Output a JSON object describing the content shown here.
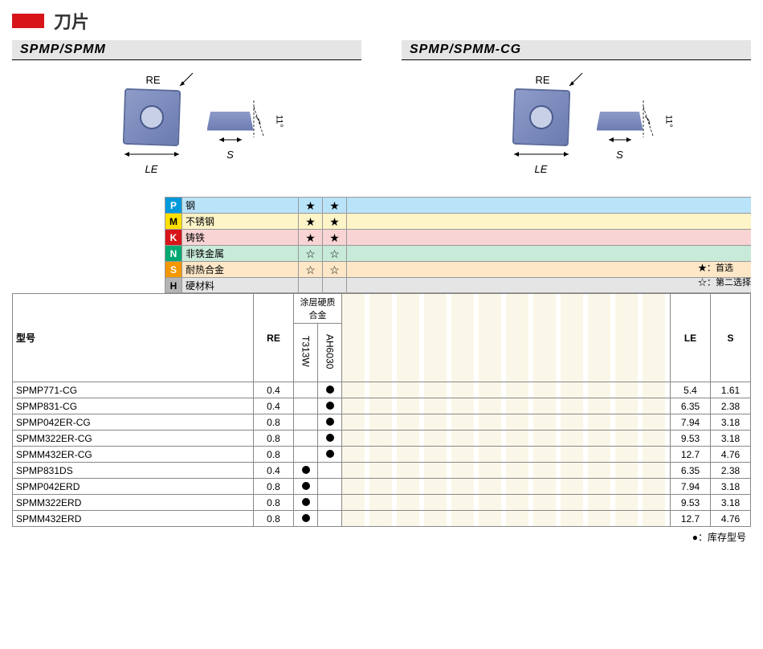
{
  "title": "刀片",
  "variants": [
    {
      "name": "SPMP/SPMM",
      "re_label": "RE",
      "le_label": "LE",
      "s_label": "S",
      "angle": "11°"
    },
    {
      "name": "SPMP/SPMM-CG",
      "re_label": "RE",
      "le_label": "LE",
      "s_label": "S",
      "angle": "11°"
    }
  ],
  "materials": [
    {
      "code": "P",
      "label": "钢",
      "bg": "#b9e3f9",
      "code_bg": "#0099db",
      "stars": [
        "★",
        "★"
      ]
    },
    {
      "code": "M",
      "label": "不锈钢",
      "bg": "#fdf4c7",
      "code_bg": "#ffe000",
      "stars": [
        "★",
        "★"
      ]
    },
    {
      "code": "K",
      "label": "铸铁",
      "bg": "#f9d4d4",
      "code_bg": "#d71518",
      "stars": [
        "★",
        "★"
      ]
    },
    {
      "code": "N",
      "label": "非铁金属",
      "bg": "#c8ead9",
      "code_bg": "#00a971",
      "stars": [
        "☆",
        "☆"
      ]
    },
    {
      "code": "S",
      "label": "耐热合金",
      "bg": "#fde7c7",
      "code_bg": "#f39800",
      "stars": [
        "☆",
        "☆"
      ]
    },
    {
      "code": "H",
      "label": "硬材料",
      "bg": "#e5e5e5",
      "code_bg": "#b4b4b4",
      "stars": [
        "",
        ""
      ]
    }
  ],
  "legend": {
    "first": "★：首选",
    "second": "☆：第二选择"
  },
  "table": {
    "headers": {
      "model": "型号",
      "re": "RE",
      "coating_group": "涂层硬质合金",
      "grades": [
        "T313W",
        "AH6030"
      ],
      "le": "LE",
      "s": "S"
    },
    "empty_cols": 15,
    "rows": [
      {
        "model": "SPMP771-CG",
        "re": "0.4",
        "g": [
          "",
          "●"
        ],
        "le": "5.4",
        "s": "1.61"
      },
      {
        "model": "SPMP831-CG",
        "re": "0.4",
        "g": [
          "",
          "●"
        ],
        "le": "6.35",
        "s": "2.38"
      },
      {
        "model": "SPMP042ER-CG",
        "re": "0.8",
        "g": [
          "",
          "●"
        ],
        "le": "7.94",
        "s": "3.18"
      },
      {
        "model": "SPMM322ER-CG",
        "re": "0.8",
        "g": [
          "",
          "●"
        ],
        "le": "9.53",
        "s": "3.18"
      },
      {
        "model": "SPMM432ER-CG",
        "re": "0.8",
        "g": [
          "",
          "●"
        ],
        "le": "12.7",
        "s": "4.76"
      },
      {
        "model": "SPMP831DS",
        "re": "0.4",
        "g": [
          "●",
          ""
        ],
        "le": "6.35",
        "s": "2.38"
      },
      {
        "model": "SPMP042ERD",
        "re": "0.8",
        "g": [
          "●",
          ""
        ],
        "le": "7.94",
        "s": "3.18"
      },
      {
        "model": "SPMM322ERD",
        "re": "0.8",
        "g": [
          "●",
          ""
        ],
        "le": "9.53",
        "s": "3.18"
      },
      {
        "model": "SPMM432ERD",
        "re": "0.8",
        "g": [
          "●",
          ""
        ],
        "le": "12.7",
        "s": "4.76"
      }
    ]
  },
  "footnote": "●：库存型号"
}
